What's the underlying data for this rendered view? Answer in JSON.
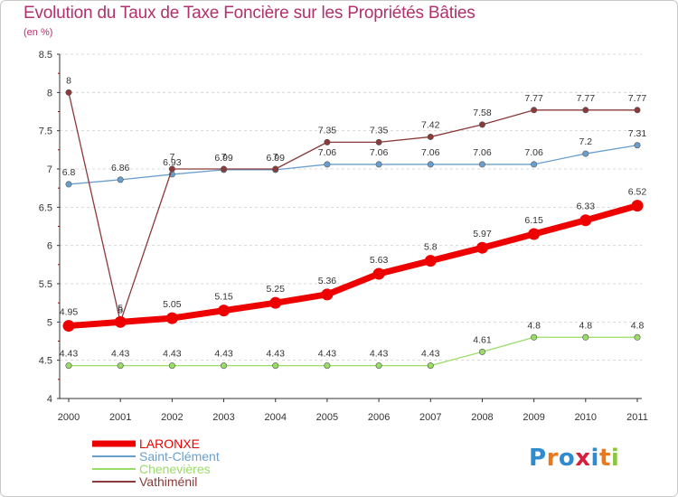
{
  "chart_data": {
    "type": "line",
    "title": "Evolution du Taux de Taxe Foncière sur les Propriétés Bâties",
    "subtitle": "(en %)",
    "categories": [
      "2000",
      "2001",
      "2002",
      "2003",
      "2004",
      "2005",
      "2006",
      "2007",
      "2008",
      "2009",
      "2010",
      "2011"
    ],
    "ylim": [
      4,
      8.5
    ],
    "yticks": [
      4,
      4.5,
      5,
      5.5,
      6,
      6.5,
      7,
      7.5,
      8,
      8.5
    ],
    "ytick_labels": [
      "4",
      "4.5",
      "5",
      "5.5",
      "6",
      "6.5",
      "7",
      "7.5",
      "8",
      "8.5"
    ],
    "grid": "horizontal dashed",
    "legend_position": "bottom-left",
    "series": [
      {
        "name": "LARONXE",
        "color": "#ee0000",
        "values": [
          4.95,
          5,
          5.05,
          5.15,
          5.25,
          5.36,
          5.63,
          5.8,
          5.97,
          6.15,
          6.33,
          6.52
        ],
        "labels": [
          "4.95",
          "5",
          "5.05",
          "5.15",
          "5.25",
          "5.36",
          "5.63",
          "5.8",
          "5.97",
          "6.15",
          "6.33",
          "6.52"
        ]
      },
      {
        "name": "Saint-Clément",
        "color": "#6a9fcd",
        "values": [
          6.8,
          6.86,
          6.93,
          6.99,
          6.99,
          7.06,
          7.06,
          7.06,
          7.06,
          7.06,
          7.2,
          7.31
        ],
        "labels": [
          "6.8",
          "6.86",
          "6.93",
          "6.99",
          "6.99",
          "7.06",
          "7.06",
          "7.06",
          "7.06",
          "7.06",
          "7.2",
          "7.31"
        ]
      },
      {
        "name": "Chenevières",
        "color": "#99dd66",
        "values": [
          4.43,
          4.43,
          4.43,
          4.43,
          4.43,
          4.43,
          4.43,
          4.43,
          4.61,
          4.8,
          4.8,
          4.8
        ],
        "labels": [
          "4.43",
          "4.43",
          "4.43",
          "4.43",
          "4.43",
          "4.43",
          "4.43",
          "4.43",
          "4.61",
          "4.8",
          "4.8",
          "4.8"
        ]
      },
      {
        "name": "Vathiménil",
        "color": "#8b3a3a",
        "values": [
          8,
          5,
          7,
          7,
          7,
          7.35,
          7.35,
          7.42,
          7.58,
          7.77,
          7.77,
          7.77
        ],
        "labels": [
          "8",
          "5",
          "7",
          "7",
          "7",
          "7.35",
          "7.35",
          "7.42",
          "7.58",
          "7.77",
          "7.77",
          "7.77"
        ]
      }
    ]
  },
  "logo": {
    "letters": [
      {
        "ch": "P",
        "color": "#2e8bd0"
      },
      {
        "ch": "r",
        "color": "#e87a1d"
      },
      {
        "ch": "o",
        "color": "#2e8bd0"
      },
      {
        "ch": "x",
        "color": "#d91e3c"
      },
      {
        "ch": "i",
        "color": "#2e8bd0"
      },
      {
        "ch": "t",
        "color": "#e87a1d"
      },
      {
        "ch": "i",
        "color": "#8cc63e"
      }
    ]
  }
}
